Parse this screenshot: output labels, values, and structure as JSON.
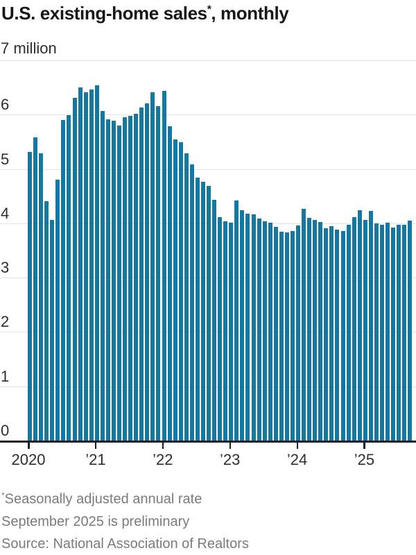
{
  "title": {
    "main": "U.S. existing-home sales",
    "sup": "*",
    "rest": ", monthly"
  },
  "colors": {
    "bar": "#1478a0",
    "gridline": "#e4e4e4",
    "axis": "#1d1d1d",
    "axis_text": "#2e2e2e",
    "title_text": "#171717",
    "note_text": "#7b7b7b"
  },
  "y_axis": {
    "top_label": "7 million",
    "tick_labels": [
      "0",
      "1",
      "2",
      "3",
      "4",
      "5",
      "6"
    ]
  },
  "x_axis": {
    "labels": [
      "2020",
      "’21",
      "’22",
      "’23",
      "’24",
      "’25"
    ]
  },
  "notes": {
    "footnote_sup": "*",
    "footnote": "Seasonally adjusted annual rate",
    "preliminary": "September 2025 is preliminary",
    "source": "Source: National Association of Realtors"
  },
  "chart_data": {
    "type": "bar",
    "title": "U.S. existing-home sales, monthly",
    "unit": "million homes, seasonally adjusted annual rate",
    "ylim": [
      0,
      7
    ],
    "grid": true,
    "x_tick_month_indices": [
      0,
      12,
      24,
      36,
      48,
      60
    ],
    "categories": [
      "Jan 2020",
      "Feb 2020",
      "Mar 2020",
      "Apr 2020",
      "May 2020",
      "Jun 2020",
      "Jul 2020",
      "Aug 2020",
      "Sep 2020",
      "Oct 2020",
      "Nov 2020",
      "Dec 2020",
      "Jan 2021",
      "Feb 2021",
      "Mar 2021",
      "Apr 2021",
      "May 2021",
      "Jun 2021",
      "Jul 2021",
      "Aug 2021",
      "Sep 2021",
      "Oct 2021",
      "Nov 2021",
      "Dec 2021",
      "Jan 2022",
      "Feb 2022",
      "Mar 2022",
      "Apr 2022",
      "May 2022",
      "Jun 2022",
      "Jul 2022",
      "Aug 2022",
      "Sep 2022",
      "Oct 2022",
      "Nov 2022",
      "Dec 2022",
      "Jan 2023",
      "Feb 2023",
      "Mar 2023",
      "Apr 2023",
      "May 2023",
      "Jun 2023",
      "Jul 2023",
      "Aug 2023",
      "Sep 2023",
      "Oct 2023",
      "Nov 2023",
      "Dec 2023",
      "Jan 2024",
      "Feb 2024",
      "Mar 2024",
      "Apr 2024",
      "May 2024",
      "Jun 2024",
      "Jul 2024",
      "Aug 2024",
      "Sep 2024",
      "Oct 2024",
      "Nov 2024",
      "Dec 2024",
      "Jan 2025",
      "Feb 2025",
      "Mar 2025",
      "Apr 2025",
      "May 2025",
      "Jun 2025",
      "Jul 2025",
      "Aug 2025",
      "Sep 2025"
    ],
    "values": [
      5.33,
      5.6,
      5.3,
      4.42,
      4.07,
      4.82,
      5.92,
      6.0,
      6.32,
      6.52,
      6.42,
      6.48,
      6.55,
      6.08,
      5.93,
      5.9,
      5.81,
      5.96,
      5.99,
      6.03,
      6.15,
      6.22,
      6.43,
      6.17,
      6.45,
      5.8,
      5.56,
      5.5,
      5.3,
      5.1,
      4.86,
      4.78,
      4.7,
      4.45,
      4.12,
      4.05,
      4.02,
      4.43,
      4.26,
      4.19,
      4.18,
      4.1,
      4.05,
      4.03,
      3.95,
      3.86,
      3.85,
      3.87,
      3.97,
      4.28,
      4.11,
      4.07,
      4.04,
      3.92,
      3.96,
      3.89,
      3.87,
      3.98,
      4.13,
      4.25,
      4.07,
      4.24,
      4.01,
      3.99,
      4.02,
      3.94,
      3.99,
      3.99,
      4.06
    ]
  }
}
